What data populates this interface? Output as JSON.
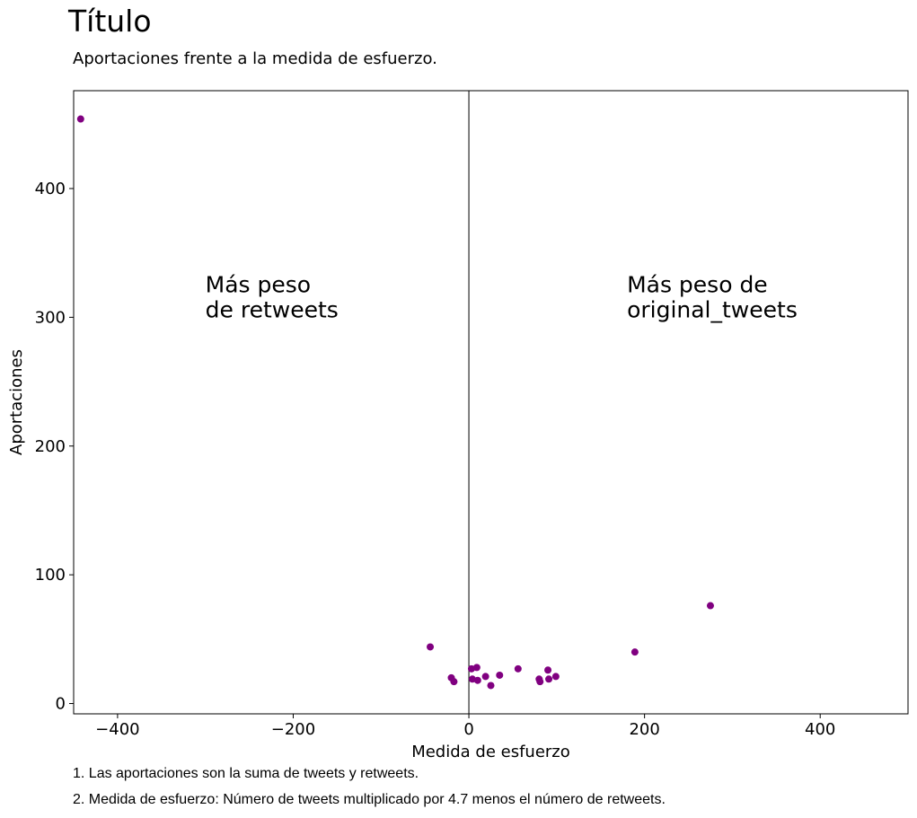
{
  "header": {
    "title": "Título",
    "subtitle": "Aportaciones frente a la medida de esfuerzo."
  },
  "notes": [
    "1. Las aportaciones son la suma de tweets y retweets.",
    "2. Medida de esfuerzo: Número de tweets multiplicado por 4.7 menos el número de retweets."
  ],
  "chart_data": {
    "type": "scatter",
    "title": "Título",
    "subtitle": "Aportaciones frente a la medida de esfuerzo.",
    "xlabel": "Medida de esfuerzo",
    "ylabel": "Aportaciones",
    "xlim": [
      -450,
      500
    ],
    "ylim": [
      -8,
      476
    ],
    "xticks": [
      -400,
      -200,
      0,
      200,
      400
    ],
    "xtick_labels": [
      "−400",
      "−200",
      "0",
      "200",
      "400"
    ],
    "yticks": [
      0,
      100,
      200,
      300,
      400
    ],
    "ytick_labels": [
      "0",
      "100",
      "200",
      "300",
      "400"
    ],
    "grid": false,
    "marker_color": "#800080",
    "reference_line": {
      "x": 0,
      "color": "#000000"
    },
    "annotations": [
      {
        "lines": [
          "Más peso",
          "de retweets"
        ],
        "x": -300,
        "y": 300
      },
      {
        "lines": [
          "Más peso de",
          "original_tweets"
        ],
        "x": 180,
        "y": 300
      }
    ],
    "points": [
      {
        "x": -442,
        "y": 454
      },
      {
        "x": -44,
        "y": 44
      },
      {
        "x": -20,
        "y": 20
      },
      {
        "x": -17,
        "y": 17
      },
      {
        "x": 3,
        "y": 27
      },
      {
        "x": 4,
        "y": 19
      },
      {
        "x": 9,
        "y": 28
      },
      {
        "x": 10,
        "y": 18
      },
      {
        "x": 19,
        "y": 21
      },
      {
        "x": 25,
        "y": 14
      },
      {
        "x": 35,
        "y": 22
      },
      {
        "x": 56,
        "y": 27
      },
      {
        "x": 80,
        "y": 19
      },
      {
        "x": 81,
        "y": 17
      },
      {
        "x": 90,
        "y": 26
      },
      {
        "x": 91,
        "y": 19
      },
      {
        "x": 99,
        "y": 21
      },
      {
        "x": 189,
        "y": 40
      },
      {
        "x": 275,
        "y": 76
      }
    ]
  }
}
